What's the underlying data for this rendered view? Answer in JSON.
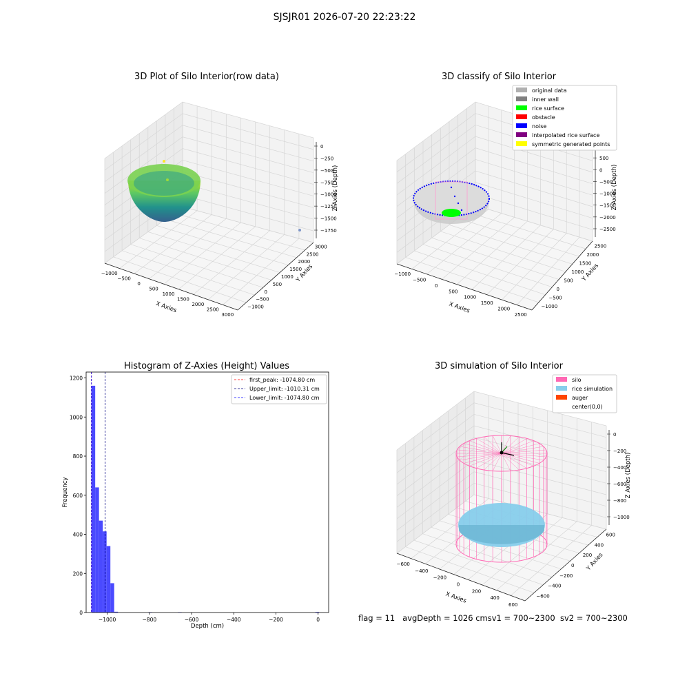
{
  "suptitle": "SJSJR01 2026-07-20 22:23:22",
  "status": {
    "flag": "flag = 11",
    "avg_depth": "avgDepth = 1026 cm",
    "sv1": "sv1 = 700~2300",
    "sv2": "sv2 = 700~2300"
  },
  "colors": {
    "hist_bar": "#4040ff",
    "first_peak": "#ff0000",
    "upper_limit": "#000080",
    "lower_limit": "#0000ff",
    "silo": "#ff69b4",
    "rice": "#87ceeb",
    "auger": "#ff4500",
    "pane": "#f0f0f0",
    "grid": "#d6d6d6"
  },
  "chart_data": [
    {
      "type": "scatter",
      "subtype": "3d",
      "title": "3D Plot of Silo Interior(row data)",
      "xlabel": "X Axies",
      "ylabel": "Y Axies",
      "zlabel": "Z Axies (Depth)",
      "x_ticks": [
        "−1000",
        "−500",
        "0",
        "500",
        "1000",
        "1500",
        "2000",
        "2500",
        "3000"
      ],
      "y_ticks": [
        "−1000",
        "−500",
        "0",
        "500",
        "1000",
        "1500",
        "2000",
        "2500",
        "3000"
      ],
      "z_ticks": [
        "0",
        "−250",
        "−500",
        "−750",
        "−1000",
        "−1250",
        "−1500",
        "−1750"
      ],
      "colormap": "viridis",
      "grid": true
    },
    {
      "type": "scatter",
      "subtype": "3d",
      "title": "3D classify of Silo Interior",
      "xlabel": "X Axies",
      "ylabel": "Y Axies",
      "zlabel": "Z Axies (Depth)",
      "x_ticks": [
        "−1000",
        "−500",
        "0",
        "500",
        "1000",
        "1500",
        "2000",
        "2500"
      ],
      "y_ticks": [
        "−1000",
        "−500",
        "0",
        "500",
        "1000",
        "1500",
        "2000",
        "2500"
      ],
      "z_ticks": [
        "1000",
        "500",
        "0",
        "−500",
        "−1000",
        "−1500",
        "−2000",
        "−2500"
      ],
      "legend_position": "top-right",
      "legend": [
        {
          "label": "original data",
          "color": "#b0b0b0"
        },
        {
          "label": "inner wall",
          "color": "#808080"
        },
        {
          "label": "rice surface",
          "color": "#00ff00"
        },
        {
          "label": "obstacle",
          "color": "#ff0000"
        },
        {
          "label": "noise",
          "color": "#0000ff"
        },
        {
          "label": "interpolated rice surface",
          "color": "#800080"
        },
        {
          "label": "symmetric generated points",
          "color": "#ffff00"
        }
      ],
      "grid": true
    },
    {
      "type": "bar",
      "subtype": "histogram",
      "title": "Histogram of Z-Axies (Height) Values",
      "xlabel": "Depth (cm)",
      "ylabel": "Frequency",
      "xlim": [
        -1100,
        50
      ],
      "ylim": [
        0,
        1230
      ],
      "x_ticks": [
        -1000,
        -800,
        -600,
        -400,
        -200,
        0
      ],
      "y_ticks": [
        0,
        200,
        400,
        600,
        800,
        1000,
        1200
      ],
      "bins": [
        {
          "x0": -1075,
          "x1": -1057,
          "count": 1160
        },
        {
          "x0": -1057,
          "x1": -1039,
          "count": 640
        },
        {
          "x0": -1039,
          "x1": -1021,
          "count": 470
        },
        {
          "x0": -1021,
          "x1": -1003,
          "count": 415
        },
        {
          "x0": -1003,
          "x1": -985,
          "count": 340
        },
        {
          "x0": -985,
          "x1": -967,
          "count": 150
        },
        {
          "x0": -967,
          "x1": -949,
          "count": 4
        },
        {
          "x0": -805,
          "x1": -787,
          "count": 2
        },
        {
          "x0": -665,
          "x1": -647,
          "count": 2
        },
        {
          "x0": -13,
          "x1": 5,
          "count": 3
        }
      ],
      "vlines": [
        {
          "label": "first_peak: -1074.80 cm",
          "x": -1074.8,
          "color": "#ff0000"
        },
        {
          "label": "Upper_limit: -1010.31 cm",
          "x": -1010.31,
          "color": "#000080"
        },
        {
          "label": "Lower_limit: -1074.80 cm",
          "x": -1074.8,
          "color": "#0000ff"
        }
      ],
      "legend_position": "top-right"
    },
    {
      "type": "scatter",
      "subtype": "3d",
      "title": "3D simulation of Silo Interior",
      "xlabel": "X Axies",
      "ylabel": "Y Axies",
      "zlabel": "Z Axies (Depth)",
      "x_ticks": [
        "−600",
        "−400",
        "−200",
        "0",
        "200",
        "400",
        "600"
      ],
      "y_ticks": [
        "−600",
        "−400",
        "−200",
        "0",
        "200",
        "400",
        "600"
      ],
      "z_ticks": [
        "0",
        "−200",
        "−400",
        "−600",
        "−800",
        "−1000"
      ],
      "legend_position": "top-right",
      "legend": [
        {
          "label": "silo",
          "color": "#ff69b4"
        },
        {
          "label": "rice simulation",
          "color": "#87ceeb"
        },
        {
          "label": "auger",
          "color": "#ff4500"
        },
        {
          "label": "center(0,0)",
          "color": ""
        }
      ],
      "grid": true
    }
  ]
}
